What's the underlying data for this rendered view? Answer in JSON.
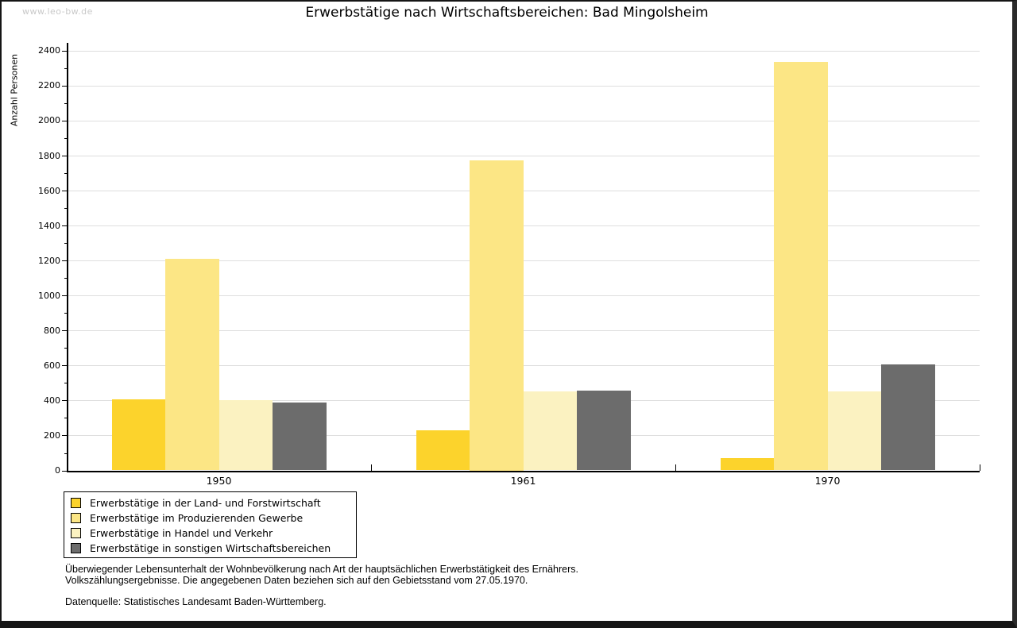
{
  "watermark": "www.leo-bw.de",
  "title": "Erwerbstätige nach Wirtschaftsbereichen: Bad Mingolsheim",
  "chart_data": {
    "type": "bar",
    "title": "Erwerbstätige nach Wirtschaftsbereichen: Bad Mingolsheim",
    "xlabel": "",
    "ylabel": "Anzahl Personen",
    "ylim": [
      0,
      2400
    ],
    "ytick_step": 200,
    "yminor_step": 100,
    "grid": true,
    "legend_position": "bottom-left",
    "categories": [
      "1950",
      "1961",
      "1970"
    ],
    "series": [
      {
        "name": "Erwerbstätige in der Land- und Forstwirtschaft",
        "color": "#fcd32c",
        "values": [
          405,
          230,
          70
        ]
      },
      {
        "name": "Erwerbstätige im Produzierenden Gewerbe",
        "color": "#fce685",
        "values": [
          1210,
          1775,
          2335
        ]
      },
      {
        "name": "Erwerbstätige in Handel und Verkehr",
        "color": "#fbf2c1",
        "values": [
          400,
          450,
          450
        ]
      },
      {
        "name": "Erwerbstätige in sonstigen Wirtschaftsbereichen",
        "color": "#6c6c6c",
        "values": [
          390,
          455,
          605
        ]
      }
    ],
    "colors": {
      "gridline": "#dedede",
      "axis": "#000000",
      "watermark": "#c9c9c9"
    }
  },
  "footnote": {
    "line1": "Überwiegender Lebensunterhalt der Wohnbevölkerung nach Art der hauptsächlichen Erwerbstätigkeit des Ernährers.",
    "line2": "Volkszählungsergebnisse. Die angegebenen Daten beziehen sich auf den Gebietsstand vom 27.05.1970.",
    "source": "Datenquelle: Statistisches Landesamt Baden-Württemberg."
  }
}
